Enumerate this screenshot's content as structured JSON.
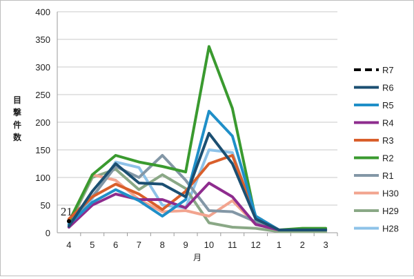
{
  "chart_data": {
    "type": "line",
    "xlabel": "月",
    "ylabel": "目撃件数",
    "categories": [
      "4",
      "5",
      "6",
      "7",
      "8",
      "9",
      "10",
      "11",
      "12",
      "1",
      "2",
      "3"
    ],
    "ylim": [
      0,
      400
    ],
    "yticks": [
      0,
      50,
      100,
      150,
      200,
      250,
      300,
      350,
      400
    ],
    "grid": true,
    "legend_placement": "right",
    "annotation": "21",
    "series": [
      {
        "name": "R7",
        "color": "#000000",
        "dashed": true,
        "values": [
          21,
          null,
          null,
          null,
          null,
          null,
          null,
          null,
          null,
          null,
          null,
          null
        ]
      },
      {
        "name": "R6",
        "color": "#1b4f72",
        "values": [
          12,
          75,
          125,
          90,
          88,
          65,
          180,
          125,
          25,
          5,
          5,
          5
        ]
      },
      {
        "name": "R5",
        "color": "#1f8fc8",
        "values": [
          15,
          55,
          78,
          58,
          30,
          60,
          220,
          175,
          30,
          5,
          5,
          5
        ]
      },
      {
        "name": "R4",
        "color": "#8e2c8e",
        "values": [
          10,
          50,
          70,
          60,
          60,
          45,
          90,
          65,
          15,
          5,
          5,
          5
        ]
      },
      {
        "name": "R3",
        "color": "#d95f2b",
        "values": [
          25,
          65,
          88,
          70,
          42,
          75,
          125,
          140,
          30,
          5,
          5,
          5
        ]
      },
      {
        "name": "R2",
        "color": "#3a9a2f",
        "values": [
          20,
          105,
          140,
          128,
          120,
          110,
          337,
          225,
          25,
          5,
          8,
          8
        ]
      },
      {
        "name": "R1",
        "color": "#8397a6",
        "values": [
          18,
          65,
          120,
          100,
          140,
          95,
          40,
          38,
          20,
          5,
          5,
          5
        ]
      },
      {
        "name": "H30",
        "color": "#f2a48f",
        "values": [
          20,
          105,
          95,
          60,
          38,
          40,
          30,
          58,
          15,
          5,
          5,
          5
        ]
      },
      {
        "name": "H29",
        "color": "#8aa886",
        "values": [
          15,
          100,
          115,
          78,
          105,
          80,
          18,
          10,
          8,
          2,
          2,
          2
        ]
      },
      {
        "name": "H28",
        "color": "#8ec2e8",
        "values": [
          10,
          62,
          128,
          118,
          50,
          45,
          150,
          145,
          25,
          5,
          5,
          5
        ]
      }
    ]
  }
}
